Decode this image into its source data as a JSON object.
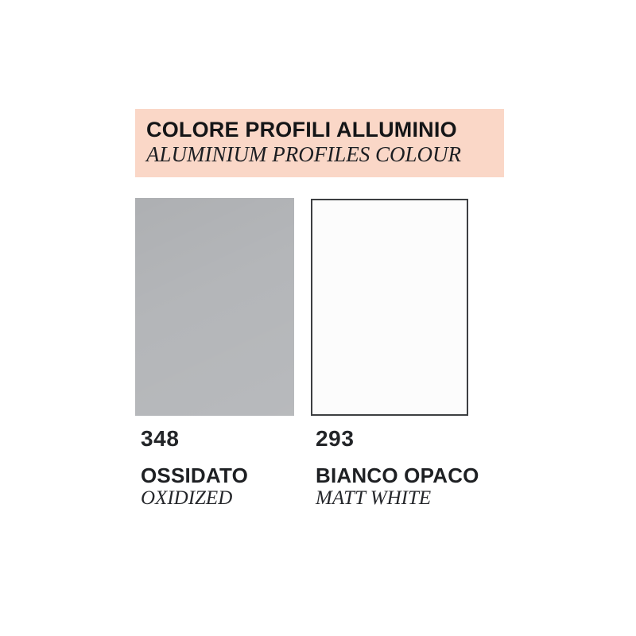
{
  "page": {
    "background": "#ffffff"
  },
  "header": {
    "title": "COLORE PROFILI ALLUMINIO",
    "subtitle": "ALUMINIUM PROFILES COLOUR",
    "background": "#fad7c7"
  },
  "swatches": [
    {
      "code": "348",
      "name_primary": "OSSIDATO",
      "name_secondary": "OXIDIZED",
      "color": "#b4b6b9"
    },
    {
      "code": "293",
      "name_primary": "BIANCO OPACO",
      "name_secondary": "MATT WHITE",
      "color": "#fcfcfc",
      "border_color": "#3d3f42"
    }
  ]
}
